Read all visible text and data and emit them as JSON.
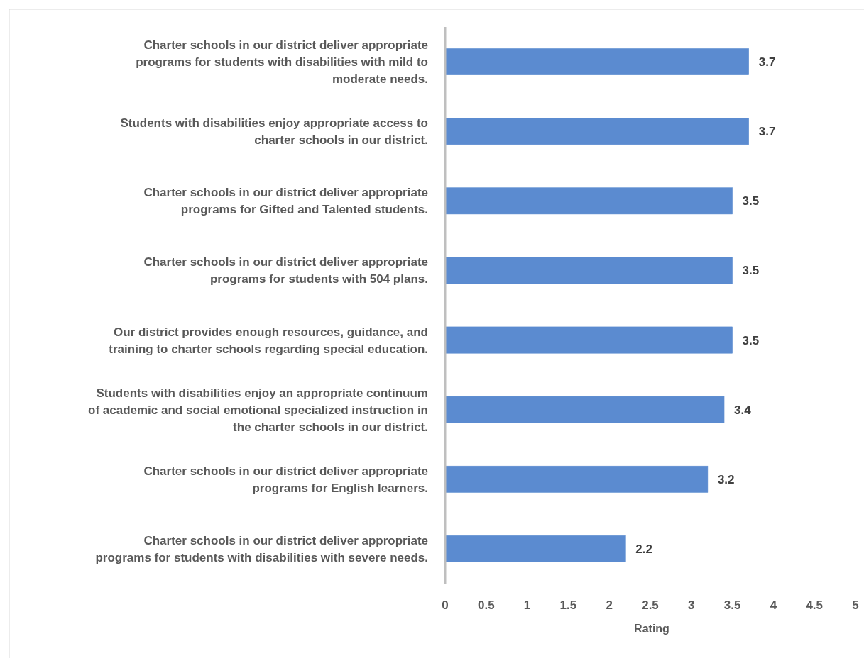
{
  "chart_data": {
    "type": "bar",
    "orientation": "horizontal",
    "xlabel": "Rating",
    "categories": [
      "Charter schools in our district deliver appropriate programs for students with disabilities with mild to moderate needs.",
      "Students with disabilities enjoy appropriate access to charter schools in our district.",
      "Charter schools in our district deliver appropriate programs for Gifted and Talented students.",
      "Charter schools in our district deliver appropriate programs for students with 504 plans.",
      "Our district provides enough resources, guidance, and training to charter schools regarding special education.",
      "Students with disabilities enjoy an appropriate continuum of academic and social emotional specialized instruction in the charter schools in our district.",
      "Charter schools in our district deliver appropriate programs for English learners.",
      "Charter schools in our district deliver appropriate programs for students with disabilities with severe needs."
    ],
    "values": [
      3.7,
      3.7,
      3.5,
      3.5,
      3.5,
      3.4,
      3.2,
      2.2
    ],
    "color": "#5b8bd0",
    "data_labels": true,
    "grid": false,
    "xlim": [
      0,
      5
    ],
    "xticks": [
      0,
      0.5,
      1,
      1.5,
      2,
      2.5,
      3,
      3.5,
      4,
      4.5,
      5
    ]
  }
}
